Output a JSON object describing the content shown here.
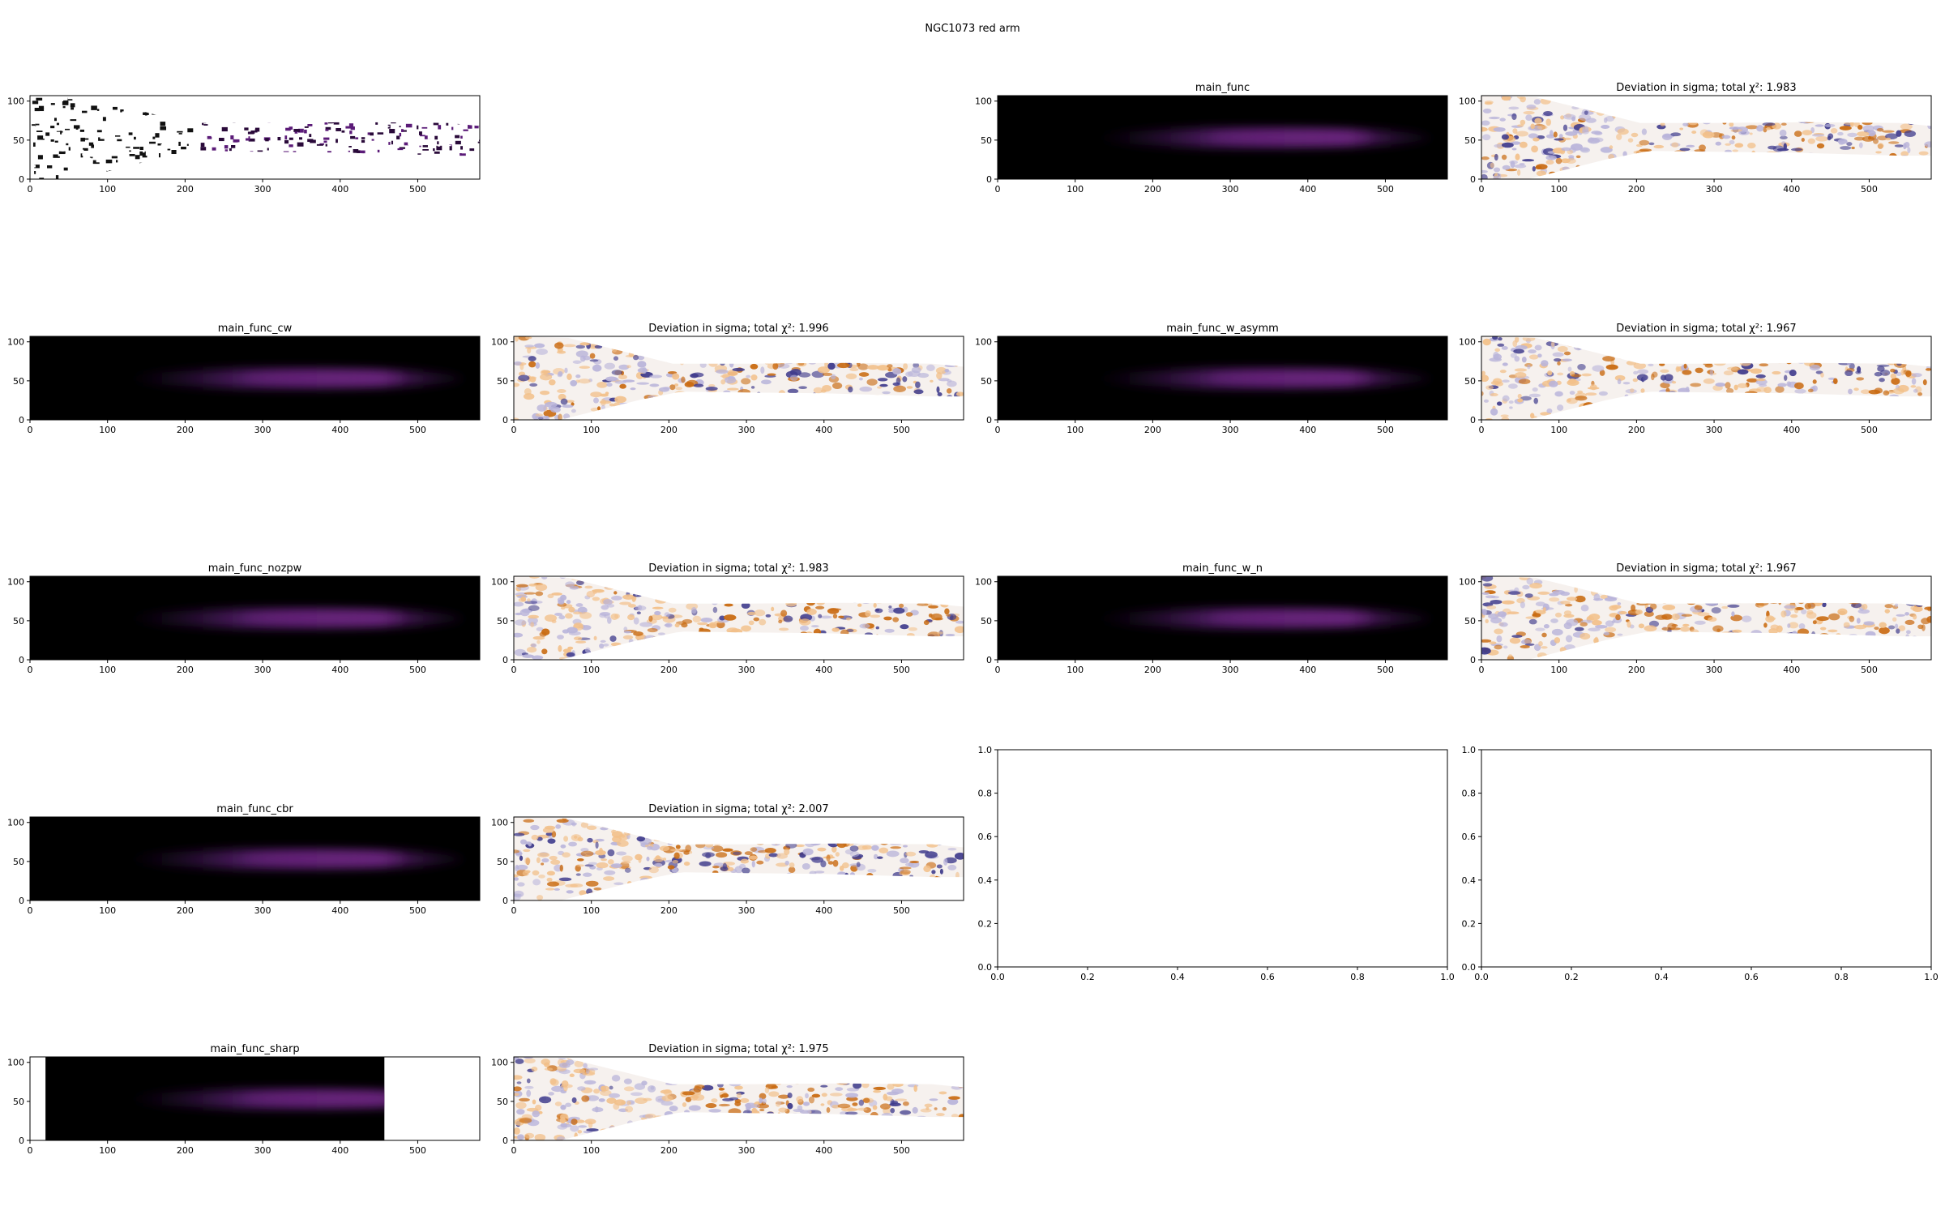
{
  "figure": {
    "title": "NGC1073 red arm"
  },
  "chart_data": [
    {
      "id": "observed",
      "type": "heatmap",
      "kind": "observed",
      "title": "",
      "xlim": [
        0,
        580
      ],
      "ylim": [
        0,
        107
      ],
      "xticks": [
        0,
        100,
        200,
        300,
        400,
        500
      ],
      "yticks": [
        0,
        50,
        100
      ]
    },
    {
      "id": "main_func",
      "type": "heatmap",
      "kind": "model",
      "title": "main_func",
      "xlim": [
        0,
        580
      ],
      "ylim": [
        0,
        107
      ],
      "xticks": [
        0,
        100,
        200,
        300,
        400,
        500
      ],
      "yticks": [
        0,
        50,
        100
      ]
    },
    {
      "id": "main_func_dev",
      "type": "heatmap",
      "kind": "deviation",
      "title": "Deviation in sigma; total χ²: 1.983",
      "chi2": 1.983,
      "xlim": [
        0,
        580
      ],
      "ylim": [
        0,
        107
      ],
      "xticks": [
        0,
        100,
        200,
        300,
        400,
        500
      ],
      "yticks": [
        0,
        50,
        100
      ]
    },
    {
      "id": "main_func_cw",
      "type": "heatmap",
      "kind": "model",
      "title": "main_func_cw",
      "xlim": [
        0,
        580
      ],
      "ylim": [
        0,
        107
      ],
      "xticks": [
        0,
        100,
        200,
        300,
        400,
        500
      ],
      "yticks": [
        0,
        50,
        100
      ]
    },
    {
      "id": "main_func_cw_dev",
      "type": "heatmap",
      "kind": "deviation",
      "title": "Deviation in sigma; total χ²: 1.996",
      "chi2": 1.996,
      "xlim": [
        0,
        580
      ],
      "ylim": [
        0,
        107
      ],
      "xticks": [
        0,
        100,
        200,
        300,
        400,
        500
      ],
      "yticks": [
        0,
        50,
        100
      ]
    },
    {
      "id": "main_func_w_asymm",
      "type": "heatmap",
      "kind": "model",
      "title": "main_func_w_asymm",
      "xlim": [
        0,
        580
      ],
      "ylim": [
        0,
        107
      ],
      "xticks": [
        0,
        100,
        200,
        300,
        400,
        500
      ],
      "yticks": [
        0,
        50,
        100
      ]
    },
    {
      "id": "main_func_w_asymm_dev",
      "type": "heatmap",
      "kind": "deviation",
      "title": "Deviation in sigma; total χ²: 1.967",
      "chi2": 1.967,
      "xlim": [
        0,
        580
      ],
      "ylim": [
        0,
        107
      ],
      "xticks": [
        0,
        100,
        200,
        300,
        400,
        500
      ],
      "yticks": [
        0,
        50,
        100
      ]
    },
    {
      "id": "main_func_nozpw",
      "type": "heatmap",
      "kind": "model",
      "title": "main_func_nozpw",
      "xlim": [
        0,
        580
      ],
      "ylim": [
        0,
        107
      ],
      "xticks": [
        0,
        100,
        200,
        300,
        400,
        500
      ],
      "yticks": [
        0,
        50,
        100
      ]
    },
    {
      "id": "main_func_nozpw_dev",
      "type": "heatmap",
      "kind": "deviation",
      "title": "Deviation in sigma; total χ²: 1.983",
      "chi2": 1.983,
      "xlim": [
        0,
        580
      ],
      "ylim": [
        0,
        107
      ],
      "xticks": [
        0,
        100,
        200,
        300,
        400,
        500
      ],
      "yticks": [
        0,
        50,
        100
      ]
    },
    {
      "id": "main_func_w_n",
      "type": "heatmap",
      "kind": "model",
      "title": "main_func_w_n",
      "xlim": [
        0,
        580
      ],
      "ylim": [
        0,
        107
      ],
      "xticks": [
        0,
        100,
        200,
        300,
        400,
        500
      ],
      "yticks": [
        0,
        50,
        100
      ]
    },
    {
      "id": "main_func_w_n_dev",
      "type": "heatmap",
      "kind": "deviation",
      "title": "Deviation in sigma; total χ²: 1.967",
      "chi2": 1.967,
      "xlim": [
        0,
        580
      ],
      "ylim": [
        0,
        107
      ],
      "xticks": [
        0,
        100,
        200,
        300,
        400,
        500
      ],
      "yticks": [
        0,
        50,
        100
      ]
    },
    {
      "id": "main_func_cbr",
      "type": "heatmap",
      "kind": "model",
      "title": "main_func_cbr",
      "xlim": [
        0,
        580
      ],
      "ylim": [
        0,
        107
      ],
      "xticks": [
        0,
        100,
        200,
        300,
        400,
        500
      ],
      "yticks": [
        0,
        50,
        100
      ]
    },
    {
      "id": "main_func_cbr_dev",
      "type": "heatmap",
      "kind": "deviation",
      "title": "Deviation in sigma; total χ²: 2.007",
      "chi2": 2.007,
      "xlim": [
        0,
        580
      ],
      "ylim": [
        0,
        107
      ],
      "xticks": [
        0,
        100,
        200,
        300,
        400,
        500
      ],
      "yticks": [
        0,
        50,
        100
      ]
    },
    {
      "id": "empty_1",
      "type": "scatter",
      "kind": "empty",
      "title": "",
      "xlim": [
        0,
        1
      ],
      "ylim": [
        0,
        1
      ],
      "xticks": [
        0.0,
        0.2,
        0.4,
        0.6,
        0.8,
        1.0
      ],
      "yticks": [
        0.0,
        0.2,
        0.4,
        0.6,
        0.8,
        1.0
      ]
    },
    {
      "id": "empty_2",
      "type": "scatter",
      "kind": "empty",
      "title": "",
      "xlim": [
        0,
        1
      ],
      "ylim": [
        0,
        1
      ],
      "xticks": [
        0.0,
        0.2,
        0.4,
        0.6,
        0.8,
        1.0
      ],
      "yticks": [
        0.0,
        0.2,
        0.4,
        0.6,
        0.8,
        1.0
      ]
    },
    {
      "id": "main_func_sharp",
      "type": "heatmap",
      "kind": "model",
      "title": "main_func_sharp",
      "image_x_range": [
        20,
        457
      ],
      "xlim": [
        0,
        580
      ],
      "ylim": [
        0,
        107
      ],
      "xticks": [
        0,
        100,
        200,
        300,
        400,
        500
      ],
      "yticks": [
        0,
        50,
        100
      ]
    },
    {
      "id": "main_func_sharp_dev",
      "type": "heatmap",
      "kind": "deviation",
      "title": "Deviation in sigma; total χ²: 1.975",
      "chi2": 1.975,
      "xlim": [
        0,
        580
      ],
      "ylim": [
        0,
        107
      ],
      "xticks": [
        0,
        100,
        200,
        300,
        400,
        500
      ],
      "yticks": [
        0,
        50,
        100
      ]
    }
  ]
}
